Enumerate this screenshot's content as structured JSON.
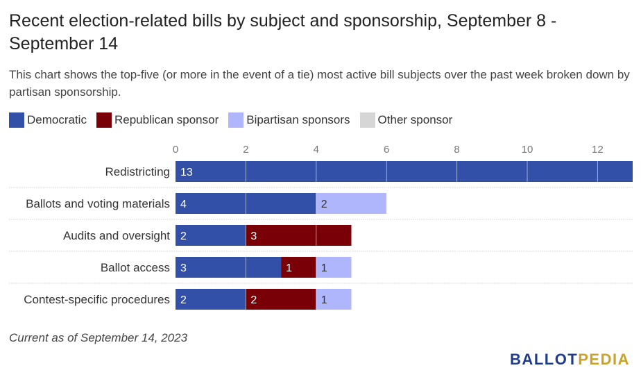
{
  "title": "Recent election-related bills by subject and sponsorship, September 8 - September 14",
  "subtitle": "This chart shows the top-five (or more in the event of a tie) most active bill subjects over the past week broken down by partisan sponsorship.",
  "footer_note": "Current as of September 14, 2023",
  "logo": {
    "part1": "BALLOT",
    "part2": "PEDIA"
  },
  "colors": {
    "democratic": "#3350a8",
    "republican": "#7a0008",
    "bipartisan": "#b0b6fb",
    "other": "#d6d6d6",
    "gridline": "#ffffff",
    "separator": "#dddddd"
  },
  "legend": [
    {
      "label": "Democratic",
      "color": "#3350a8"
    },
    {
      "label": "Republican sponsor",
      "color": "#7a0008"
    },
    {
      "label": "Bipartisan sponsors",
      "color": "#b0b6fb"
    },
    {
      "label": "Other sponsor",
      "color": "#d6d6d6"
    }
  ],
  "chart_data": {
    "type": "bar",
    "orientation": "horizontal",
    "stacked": true,
    "categories": [
      "Redistricting",
      "Ballots and voting materials",
      "Audits and oversight",
      "Ballot access",
      "Contest-specific procedures"
    ],
    "series": [
      {
        "name": "Democratic",
        "values": [
          13,
          4,
          2,
          3,
          2
        ]
      },
      {
        "name": "Republican sponsor",
        "values": [
          0,
          0,
          3,
          1,
          2
        ]
      },
      {
        "name": "Bipartisan sponsors",
        "values": [
          0,
          2,
          0,
          1,
          1
        ]
      },
      {
        "name": "Other sponsor",
        "values": [
          0,
          0,
          0,
          0,
          0
        ]
      }
    ],
    "x_ticks": [
      "0",
      "2",
      "4",
      "6",
      "8",
      "10",
      "12"
    ],
    "xlim": [
      0,
      13
    ],
    "axis_position": "top",
    "legend_position": "top-left",
    "grid": true
  }
}
